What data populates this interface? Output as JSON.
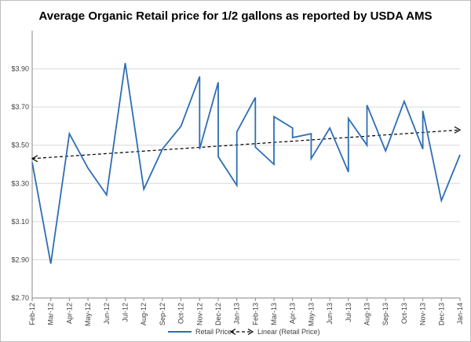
{
  "chart_data": {
    "type": "line",
    "title": "Average Organic Retail price for 1/2 gallons as reported by USDA AMS",
    "xlabel": "",
    "ylabel": "",
    "ylim": [
      2.7,
      4.1
    ],
    "yticks": [
      "$2.70",
      "$2.90",
      "$3.10",
      "$3.30",
      "$3.50",
      "$3.70",
      "$3.90"
    ],
    "ytick_values": [
      2.7,
      2.9,
      3.1,
      3.3,
      3.5,
      3.7,
      3.9
    ],
    "categories": [
      "Feb-12",
      "Mar-12",
      "Apr-12",
      "May-12",
      "Jun-12",
      "Jul-12",
      "Aug-12",
      "Sep-12",
      "Oct-12",
      "Nov-12",
      "Dec-12",
      "Jan-13",
      "Feb-13",
      "Mar-13",
      "Apr-13",
      "May-13",
      "Jun-13",
      "Jul-13",
      "Aug-13",
      "Sep-13",
      "Oct-13",
      "Nov-13",
      "Dec-13",
      "Jan-14"
    ],
    "grid": true,
    "series": [
      {
        "name": "Retail Price",
        "color": "#2e6db4",
        "points": [
          [
            0,
            3.41
          ],
          [
            1,
            2.88
          ],
          [
            2,
            3.56
          ],
          [
            3,
            3.38
          ],
          [
            4,
            3.24
          ],
          [
            5,
            3.93
          ],
          [
            6,
            3.27
          ],
          [
            7,
            3.48
          ],
          [
            8,
            3.6
          ],
          [
            9,
            3.86
          ],
          [
            9,
            3.48
          ],
          [
            10,
            3.83
          ],
          [
            10,
            3.44
          ],
          [
            11,
            3.29
          ],
          [
            11,
            3.57
          ],
          [
            12,
            3.75
          ],
          [
            12,
            3.49
          ],
          [
            13,
            3.4
          ],
          [
            13,
            3.65
          ],
          [
            14,
            3.59
          ],
          [
            14,
            3.54
          ],
          [
            15,
            3.56
          ],
          [
            15,
            3.43
          ],
          [
            16,
            3.59
          ],
          [
            17,
            3.36
          ],
          [
            17,
            3.64
          ],
          [
            18,
            3.5
          ],
          [
            18,
            3.71
          ],
          [
            19,
            3.47
          ],
          [
            20,
            3.73
          ],
          [
            21,
            3.48
          ],
          [
            21,
            3.68
          ],
          [
            22,
            3.21
          ],
          [
            23,
            3.45
          ]
        ]
      }
    ],
    "trendline": {
      "name": "Linear (Retail Price)",
      "color": "#000000",
      "start": [
        0,
        3.43
      ],
      "end": [
        23,
        3.58
      ]
    },
    "legend": {
      "position": "bottom",
      "entries": [
        "Retail Price",
        "Linear (Retail Price)"
      ]
    }
  }
}
